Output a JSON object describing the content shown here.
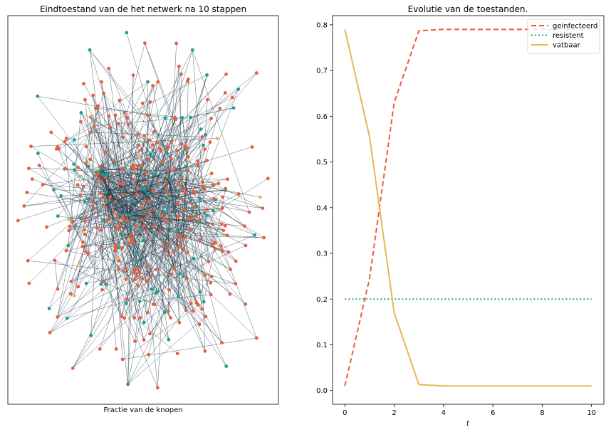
{
  "colors": {
    "infected": "#e5603f",
    "resistant": "#1f9e89",
    "susceptible": "#e8b656",
    "edge": "#243c4c",
    "frame": "#000000"
  },
  "chart_data": [
    {
      "type": "network",
      "title": "Eindtoestand van de het netwerk na 10 stappen",
      "xlabel": "Fractie van de knopen",
      "legend": [],
      "grid": false
    },
    {
      "type": "line",
      "title": "Evolutie van de toestanden.",
      "xlabel": "t",
      "ylabel": "",
      "xlim": [
        -0.5,
        10.5
      ],
      "ylim": [
        -0.03,
        0.82
      ],
      "xticks": [
        "0",
        "2",
        "4",
        "6",
        "8",
        "10"
      ],
      "yticks": [
        "0.0",
        "0.1",
        "0.2",
        "0.3",
        "0.4",
        "0.5",
        "0.6",
        "0.7",
        "0.8"
      ],
      "legend_position": "top-right",
      "grid": false,
      "x": [
        0,
        1,
        2,
        3,
        4,
        5,
        6,
        7,
        8,
        9,
        10
      ],
      "series": [
        {
          "name": "geinfecteerd",
          "style": "dashed",
          "color": "#e5603f",
          "values": [
            0.01,
            0.245,
            0.63,
            0.787,
            0.79,
            0.79,
            0.79,
            0.79,
            0.79,
            0.79,
            0.79
          ]
        },
        {
          "name": "resistent",
          "style": "dotted",
          "color": "#1f9e89",
          "values": [
            0.2,
            0.2,
            0.2,
            0.2,
            0.2,
            0.2,
            0.2,
            0.2,
            0.2,
            0.2,
            0.2
          ]
        },
        {
          "name": "vatbaar",
          "style": "solid",
          "color": "#e8b656",
          "values": [
            0.79,
            0.555,
            0.17,
            0.013,
            0.01,
            0.01,
            0.01,
            0.01,
            0.01,
            0.01,
            0.01
          ]
        }
      ]
    }
  ]
}
